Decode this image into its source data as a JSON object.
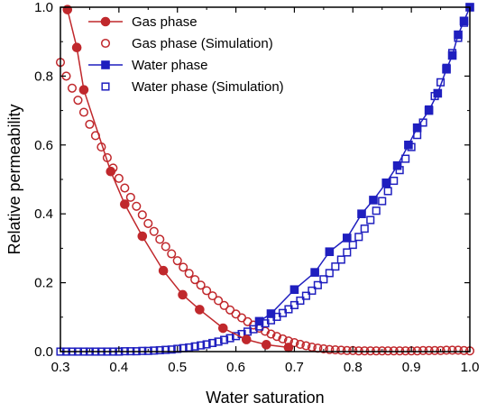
{
  "chart_data": {
    "type": "line",
    "xlabel": "Water saturation",
    "ylabel": "Relative permeability",
    "xlim": [
      0.3,
      1.0
    ],
    "ylim": [
      0.0,
      1.0
    ],
    "xticks": [
      "0.3",
      "0.4",
      "0.5",
      "0.6",
      "0.7",
      "0.8",
      "0.9",
      "1.0"
    ],
    "yticks": [
      "0.0",
      "0.2",
      "0.4",
      "0.6",
      "0.8",
      "1.0"
    ],
    "grid": false,
    "legend_position": "top-left",
    "series": [
      {
        "name": "Gas phase",
        "color": "#c0282c",
        "marker": "filled-circle",
        "line": true,
        "x": [
          0.312,
          0.328,
          0.34,
          0.386,
          0.41,
          0.44,
          0.476,
          0.509,
          0.538,
          0.578,
          0.618,
          0.652,
          0.69
        ],
        "y": [
          0.993,
          0.883,
          0.76,
          0.523,
          0.428,
          0.335,
          0.235,
          0.165,
          0.122,
          0.068,
          0.035,
          0.02,
          0.012
        ]
      },
      {
        "name": "Gas phase (Simulation)",
        "color": "#c0282c",
        "marker": "open-circle",
        "line": false,
        "x": [
          0.3,
          0.31,
          0.32,
          0.33,
          0.34,
          0.35,
          0.36,
          0.37,
          0.38,
          0.39,
          0.4,
          0.41,
          0.42,
          0.43,
          0.44,
          0.45,
          0.46,
          0.47,
          0.48,
          0.49,
          0.5,
          0.51,
          0.52,
          0.53,
          0.54,
          0.55,
          0.56,
          0.57,
          0.58,
          0.59,
          0.6,
          0.61,
          0.62,
          0.63,
          0.64,
          0.65,
          0.66,
          0.67,
          0.68,
          0.69,
          0.7,
          0.71,
          0.72,
          0.73,
          0.74,
          0.75,
          0.76,
          0.77,
          0.78,
          0.79,
          0.8,
          0.81,
          0.82,
          0.83,
          0.84,
          0.85,
          0.86,
          0.87,
          0.88,
          0.89,
          0.9,
          0.91,
          0.92,
          0.93,
          0.94,
          0.95,
          0.96,
          0.97,
          0.98,
          0.99,
          1.0
        ],
        "y": [
          0.84,
          0.8,
          0.765,
          0.73,
          0.695,
          0.66,
          0.627,
          0.594,
          0.563,
          0.533,
          0.503,
          0.475,
          0.448,
          0.422,
          0.397,
          0.372,
          0.349,
          0.326,
          0.305,
          0.284,
          0.264,
          0.245,
          0.227,
          0.209,
          0.193,
          0.177,
          0.162,
          0.148,
          0.134,
          0.121,
          0.109,
          0.098,
          0.087,
          0.077,
          0.068,
          0.059,
          0.051,
          0.044,
          0.037,
          0.031,
          0.026,
          0.021,
          0.017,
          0.013,
          0.01,
          0.008,
          0.006,
          0.005,
          0.004,
          0.003,
          0.003,
          0.002,
          0.002,
          0.002,
          0.002,
          0.002,
          0.002,
          0.002,
          0.002,
          0.002,
          0.002,
          0.002,
          0.003,
          0.003,
          0.003,
          0.003,
          0.004,
          0.004,
          0.004,
          0.003,
          0.002
        ]
      },
      {
        "name": "Water phase",
        "color": "#1f1fbf",
        "marker": "filled-square",
        "line": true,
        "x": [
          0.64,
          0.66,
          0.7,
          0.735,
          0.76,
          0.79,
          0.815,
          0.835,
          0.857,
          0.876,
          0.895,
          0.91,
          0.93,
          0.945,
          0.96,
          0.97,
          0.98,
          0.99,
          1.0
        ],
        "y": [
          0.088,
          0.11,
          0.18,
          0.23,
          0.29,
          0.33,
          0.4,
          0.44,
          0.49,
          0.54,
          0.6,
          0.65,
          0.7,
          0.75,
          0.82,
          0.86,
          0.92,
          0.96,
          1.0
        ]
      },
      {
        "name": "Water phase (Simulation)",
        "color": "#1f1fbf",
        "marker": "open-square",
        "line": false,
        "x": [
          0.3,
          0.31,
          0.32,
          0.33,
          0.34,
          0.35,
          0.36,
          0.37,
          0.38,
          0.39,
          0.4,
          0.41,
          0.42,
          0.43,
          0.44,
          0.45,
          0.46,
          0.47,
          0.48,
          0.49,
          0.5,
          0.51,
          0.52,
          0.53,
          0.54,
          0.55,
          0.56,
          0.57,
          0.58,
          0.59,
          0.6,
          0.61,
          0.62,
          0.63,
          0.64,
          0.65,
          0.66,
          0.67,
          0.68,
          0.69,
          0.7,
          0.71,
          0.72,
          0.73,
          0.74,
          0.75,
          0.76,
          0.77,
          0.78,
          0.79,
          0.8,
          0.81,
          0.82,
          0.83,
          0.84,
          0.85,
          0.86,
          0.87,
          0.88,
          0.89,
          0.9,
          0.91,
          0.92,
          0.93,
          0.94,
          0.95,
          0.96,
          0.97,
          0.98,
          0.99,
          1.0
        ],
        "y": [
          0.0,
          0.0,
          0.0,
          0.0,
          0.0,
          0.0,
          0.0,
          0.0,
          0.0,
          0.0,
          0.0,
          0.001,
          0.001,
          0.001,
          0.002,
          0.002,
          0.003,
          0.004,
          0.005,
          0.006,
          0.008,
          0.01,
          0.012,
          0.015,
          0.018,
          0.021,
          0.025,
          0.029,
          0.034,
          0.039,
          0.045,
          0.051,
          0.058,
          0.065,
          0.073,
          0.082,
          0.091,
          0.101,
          0.112,
          0.123,
          0.135,
          0.148,
          0.162,
          0.177,
          0.193,
          0.21,
          0.228,
          0.247,
          0.267,
          0.288,
          0.31,
          0.333,
          0.357,
          0.382,
          0.409,
          0.437,
          0.466,
          0.496,
          0.527,
          0.56,
          0.594,
          0.629,
          0.665,
          0.703,
          0.742,
          0.782,
          0.824,
          0.867,
          0.911,
          0.955,
          1.0
        ]
      }
    ]
  }
}
